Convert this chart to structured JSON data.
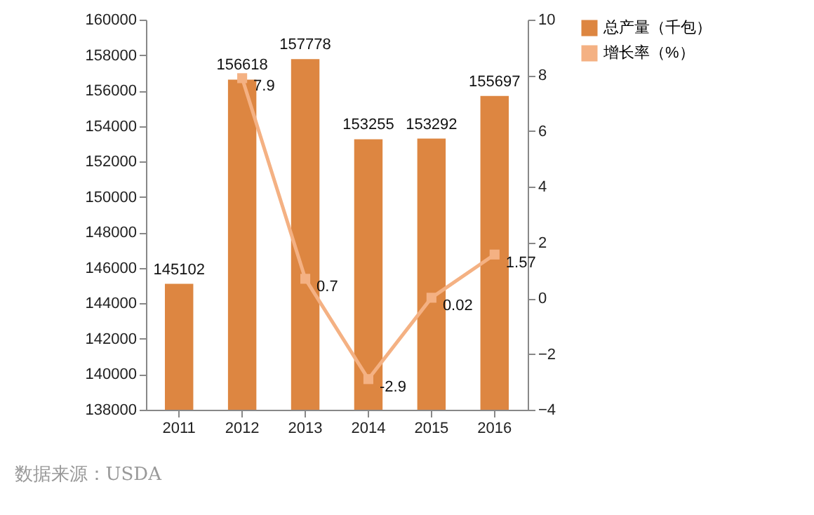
{
  "chart_data": {
    "type": "bar",
    "categories": [
      "2011",
      "2012",
      "2013",
      "2014",
      "2015",
      "2016"
    ],
    "series": [
      {
        "name": "总产量（千包）",
        "type": "bar",
        "color": "#dd8641",
        "values": [
          145102,
          156618,
          157778,
          153255,
          153292,
          155697
        ]
      },
      {
        "name": "增长率（%）",
        "type": "line",
        "axis": "y2",
        "color": "#f4b183",
        "values": [
          null,
          7.9,
          0.7,
          -2.9,
          0.02,
          1.57
        ]
      }
    ],
    "ylim": [
      138000,
      160000
    ],
    "yticks": [
      138000,
      140000,
      142000,
      144000,
      146000,
      148000,
      150000,
      152000,
      154000,
      156000,
      158000,
      160000
    ],
    "y2lim": [
      -4,
      10
    ],
    "y2ticks": [
      -4,
      -2,
      0,
      2,
      4,
      6,
      8,
      10
    ],
    "data_labels": true,
    "legend": "right",
    "marker": "square",
    "grid": false,
    "annotations": [
      "数据来源：USDA"
    ]
  }
}
